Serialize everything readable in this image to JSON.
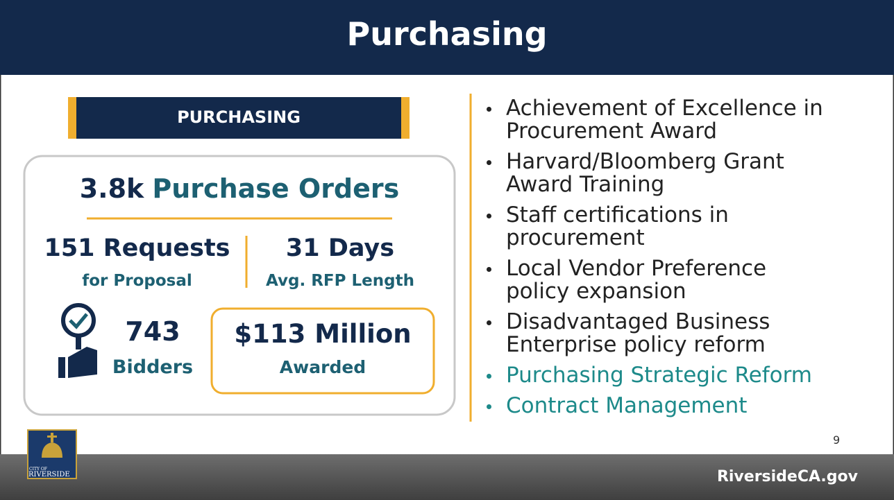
{
  "header": {
    "title": "Purchasing"
  },
  "panel": {
    "heading": "PURCHASING",
    "orders": {
      "value": "3.8k",
      "label": "Purchase Orders"
    },
    "requests": {
      "value": "151 Requests",
      "label": "for Proposal"
    },
    "days": {
      "value": "31 Days",
      "label": "Avg. RFP Length"
    },
    "bidders": {
      "value": "743",
      "label": "Bidders"
    },
    "awarded": {
      "value": "$113 Million",
      "label": "Awarded"
    }
  },
  "bullets": [
    {
      "lines": [
        "Achievement of Excellence in",
        "Procurement Award"
      ]
    },
    {
      "lines": [
        "Harvard/Bloomberg Grant",
        "Award Training"
      ]
    },
    {
      "lines": [
        "Staff certifications in",
        "procurement"
      ]
    },
    {
      "lines": [
        "Local Vendor Preference",
        "policy expansion"
      ]
    },
    {
      "lines": [
        "Disadvantaged Business",
        "Enterprise policy reform"
      ]
    },
    {
      "lines": [
        "Purchasing Strategic Reform"
      ],
      "highlight": true
    },
    {
      "lines": [
        "Contract Management"
      ],
      "highlight": true
    }
  ],
  "page_number": "9",
  "footer": {
    "logo": {
      "top": "CITY OF",
      "bottom": "RIVERSIDE"
    },
    "url": "RiversideCA.gov"
  }
}
